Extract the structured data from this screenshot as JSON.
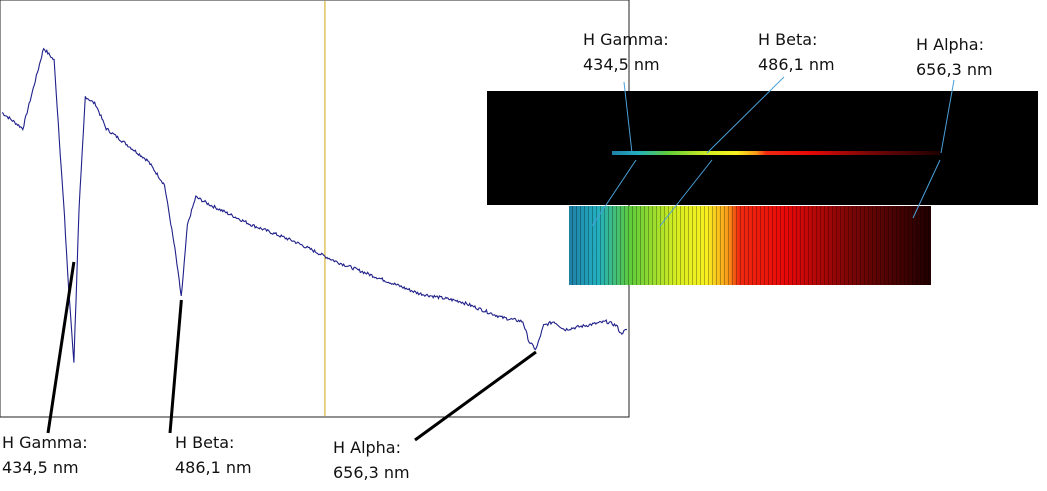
{
  "chart_data": {
    "type": "line",
    "title": "",
    "xlabel": "",
    "ylabel": "",
    "grid": false,
    "series": [
      {
        "x": [
          400,
          410,
          420,
          425,
          430,
          432,
          434.5,
          437,
          440,
          445,
          450,
          460,
          470,
          478,
          483,
          486.1,
          489,
          493,
          500,
          520,
          540,
          560,
          580,
          600,
          620,
          640,
          650,
          653,
          656.3,
          660,
          665,
          670,
          680,
          690,
          695,
          697,
          700
        ],
        "values": [
          0.74,
          0.7,
          0.9,
          0.87,
          0.48,
          0.3,
          0.12,
          0.5,
          0.78,
          0.76,
          0.7,
          0.66,
          0.62,
          0.56,
          0.4,
          0.28,
          0.46,
          0.53,
          0.51,
          0.46,
          0.42,
          0.37,
          0.33,
          0.29,
          0.27,
          0.23,
          0.22,
          0.17,
          0.15,
          0.21,
          0.22,
          0.2,
          0.21,
          0.22,
          0.21,
          0.19,
          0.2
        ]
      }
    ],
    "xlim": [
      400,
      700
    ],
    "ylim": [
      0,
      1
    ],
    "marker_x": 555,
    "marker_color": "#d4b43c",
    "line_color": "#20208a",
    "annotations": [
      {
        "name": "H Gamma:",
        "value": "434,5 nm",
        "x": 434.5
      },
      {
        "name": "H Beta:",
        "value": "486,1 nm",
        "x": 486.1
      },
      {
        "name": "H Alpha:",
        "value": "656,3 nm",
        "x": 656.3
      }
    ]
  },
  "spectrum": {
    "pointer_color": "#4aa0d8",
    "gradient_stops": [
      {
        "pos": 0.0,
        "color": "#1f7fa6"
      },
      {
        "pos": 0.08,
        "color": "#22b0c0"
      },
      {
        "pos": 0.17,
        "color": "#5fcc3a"
      },
      {
        "pos": 0.3,
        "color": "#d9ee20"
      },
      {
        "pos": 0.38,
        "color": "#f8f020"
      },
      {
        "pos": 0.44,
        "color": "#f89818"
      },
      {
        "pos": 0.47,
        "color": "#f02a10"
      },
      {
        "pos": 0.6,
        "color": "#e80808"
      },
      {
        "pos": 0.78,
        "color": "#7a0606"
      },
      {
        "pos": 1.0,
        "color": "#200000"
      }
    ]
  }
}
